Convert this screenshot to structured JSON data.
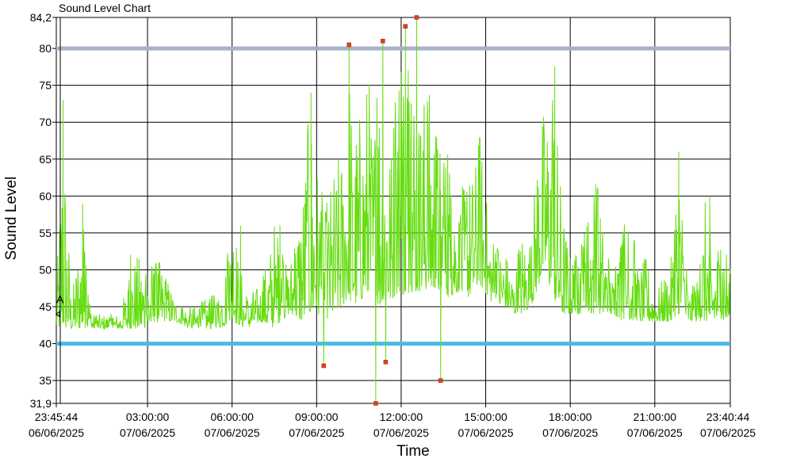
{
  "chart_data": {
    "type": "line",
    "title": "Sound Level Chart",
    "xlabel": "Time",
    "ylabel": "Sound Level",
    "ylim": [
      31.9,
      84.2
    ],
    "yticks": [
      "31,9",
      "35",
      "40",
      "45",
      "50",
      "55",
      "60",
      "65",
      "70",
      "75",
      "80",
      "84,2"
    ],
    "ytick_values": [
      31.9,
      35,
      40,
      45,
      50,
      55,
      60,
      65,
      70,
      75,
      80,
      84.2
    ],
    "xticks": [
      {
        "time": "23:45:44",
        "date": "06/06/2025"
      },
      {
        "time": "03:00:00",
        "date": "07/06/2025"
      },
      {
        "time": "06:00:00",
        "date": "07/06/2025"
      },
      {
        "time": "09:00:00",
        "date": "07/06/2025"
      },
      {
        "time": "12:00:00",
        "date": "07/06/2025"
      },
      {
        "time": "15:00:00",
        "date": "07/06/2025"
      },
      {
        "time": "18:00:00",
        "date": "07/06/2025"
      },
      {
        "time": "21:00:00",
        "date": "07/06/2025"
      },
      {
        "time": "23:40:44",
        "date": "07/06/2025"
      }
    ],
    "x_start_hours": -0.2378,
    "x_end_hours": 23.6789,
    "threshold_lines": [
      {
        "value": 80,
        "color": "#a7b1c8"
      },
      {
        "value": 40,
        "color": "#4db8e8"
      }
    ],
    "marker_label": "A",
    "marker_value": 44,
    "series_color": "#66dd11",
    "grid": true,
    "envelope": [
      [
        -0.24,
        42,
        46
      ],
      [
        0.0,
        42,
        73
      ],
      [
        0.3,
        42,
        46
      ],
      [
        0.7,
        42,
        59
      ],
      [
        1.0,
        42,
        44
      ],
      [
        1.5,
        42,
        44
      ],
      [
        2.0,
        42,
        44
      ],
      [
        2.5,
        42,
        52
      ],
      [
        3.0,
        42,
        52
      ],
      [
        3.5,
        43,
        51
      ],
      [
        4.0,
        43,
        46
      ],
      [
        4.5,
        42,
        45
      ],
      [
        5.0,
        42,
        46
      ],
      [
        5.5,
        42,
        47
      ],
      [
        6.0,
        43,
        56
      ],
      [
        6.5,
        42,
        47
      ],
      [
        7.0,
        43,
        48
      ],
      [
        7.5,
        42,
        56
      ],
      [
        8.0,
        44,
        50
      ],
      [
        8.5,
        43,
        62
      ],
      [
        8.8,
        44,
        74
      ],
      [
        9.0,
        44,
        66
      ],
      [
        9.3,
        43,
        58
      ],
      [
        9.6,
        44,
        64
      ],
      [
        9.9,
        45,
        67
      ],
      [
        10.1,
        46,
        80
      ],
      [
        10.3,
        45,
        70
      ],
      [
        10.6,
        46,
        73
      ],
      [
        10.8,
        46,
        78
      ],
      [
        11.0,
        46,
        70
      ],
      [
        11.2,
        45,
        81
      ],
      [
        11.4,
        45,
        74
      ],
      [
        11.7,
        46,
        67
      ],
      [
        11.9,
        47,
        82
      ],
      [
        12.1,
        46,
        80
      ],
      [
        12.4,
        47,
        84
      ],
      [
        12.6,
        47,
        73
      ],
      [
        12.9,
        47,
        76
      ],
      [
        13.2,
        47,
        73
      ],
      [
        13.4,
        47,
        67
      ],
      [
        13.7,
        46,
        67
      ],
      [
        14.0,
        47,
        59
      ],
      [
        14.3,
        46,
        63
      ],
      [
        14.6,
        47,
        64
      ],
      [
        14.8,
        48,
        70
      ],
      [
        15.1,
        46,
        57
      ],
      [
        15.4,
        45,
        54
      ],
      [
        15.7,
        45,
        53
      ],
      [
        16.0,
        44,
        49
      ],
      [
        16.3,
        44,
        56
      ],
      [
        16.6,
        45,
        53
      ],
      [
        16.9,
        48,
        73
      ],
      [
        17.1,
        50,
        72
      ],
      [
        17.4,
        46,
        77
      ],
      [
        17.7,
        44,
        60
      ],
      [
        18.0,
        44,
        52
      ],
      [
        18.3,
        44,
        53
      ],
      [
        18.6,
        44,
        58
      ],
      [
        18.9,
        44,
        65
      ],
      [
        19.2,
        44,
        55
      ],
      [
        19.5,
        44,
        49
      ],
      [
        19.8,
        43,
        54
      ],
      [
        20.1,
        43,
        60
      ],
      [
        20.4,
        43,
        50
      ],
      [
        20.7,
        43,
        52
      ],
      [
        21.0,
        43,
        47
      ],
      [
        21.3,
        43,
        49
      ],
      [
        21.6,
        43,
        52
      ],
      [
        21.9,
        43,
        66
      ],
      [
        22.2,
        43,
        47
      ],
      [
        22.5,
        43,
        49
      ],
      [
        22.8,
        43,
        60
      ],
      [
        23.1,
        43,
        52
      ],
      [
        23.4,
        43,
        58
      ],
      [
        23.68,
        43,
        50
      ]
    ],
    "spikes": [
      [
        0.0,
        73
      ],
      [
        0.1,
        43
      ],
      [
        0.7,
        59
      ],
      [
        2.4,
        52
      ],
      [
        3.4,
        51
      ],
      [
        6.3,
        56
      ],
      [
        7.7,
        56
      ],
      [
        8.8,
        74
      ],
      [
        9.25,
        37
      ],
      [
        10.15,
        80.5
      ],
      [
        11.1,
        31.9
      ],
      [
        11.35,
        81
      ],
      [
        11.45,
        37.5
      ],
      [
        12.15,
        83
      ],
      [
        12.55,
        84.2
      ],
      [
        13.4,
        35
      ],
      [
        17.45,
        77.5
      ],
      [
        21.85,
        66
      ],
      [
        22.95,
        60
      ]
    ],
    "red_markers": [
      [
        9.25,
        37
      ],
      [
        10.15,
        80.5
      ],
      [
        11.1,
        31.9
      ],
      [
        11.35,
        81
      ],
      [
        11.45,
        37.5
      ],
      [
        12.15,
        83
      ],
      [
        12.55,
        84.2
      ],
      [
        13.4,
        35
      ]
    ]
  }
}
